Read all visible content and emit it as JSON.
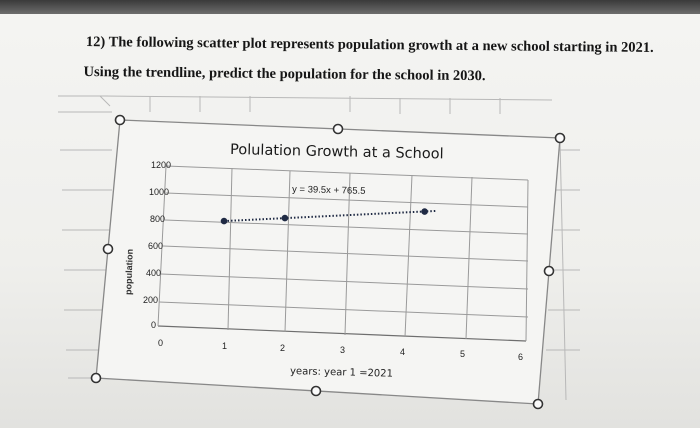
{
  "question": {
    "line1": "12) The following scatter plot represents population growth at a new school starting in 2021.",
    "line2": "Using the trendline, predict the population for the school in 2030."
  },
  "colors": {
    "points": "#1f2a44",
    "gridline": "#9a9a9a",
    "handles": "#333333"
  },
  "chart_data": {
    "type": "scatter",
    "title": "Polulation Growth at a School",
    "xlabel": "years: year 1 =2021",
    "ylabel": "population",
    "x_ticks": [
      "0",
      "1",
      "2",
      "3",
      "4",
      "5",
      "6"
    ],
    "y_ticks": [
      "0",
      "200",
      "400",
      "600",
      "800",
      "1000",
      "1200"
    ],
    "xlim": [
      0,
      6
    ],
    "ylim": [
      0,
      1200
    ],
    "grid": true,
    "trendline_equation": "y = 39.5x + 765.5",
    "trendline": {
      "slope": 39.5,
      "intercept": 765.5,
      "x_range": [
        1,
        4.5
      ]
    },
    "series": [
      {
        "points": [
          {
            "x": 1,
            "y": 805
          },
          {
            "x": 2,
            "y": 845
          },
          {
            "x": 4.3,
            "y": 935
          }
        ]
      }
    ]
  }
}
